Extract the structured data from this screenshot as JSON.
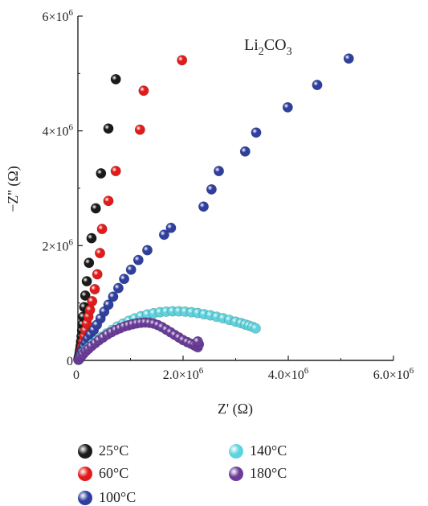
{
  "chart_data": {
    "type": "scatter",
    "title": "",
    "annotation": {
      "text_main": "Li",
      "sub1": "2",
      "text_mid": "CO",
      "sub2": "3"
    },
    "xlabel": "Z' (Ω)",
    "ylabel": "−Z'' (Ω)",
    "xlim": [
      0,
      6000000
    ],
    "ylim": [
      0,
      6000000
    ],
    "x_ticks": [
      {
        "value": 0,
        "label": "0"
      },
      {
        "value": 2000000,
        "label": "2.0×10",
        "exp": "6"
      },
      {
        "value": 4000000,
        "label": "4.0×10",
        "exp": "6"
      },
      {
        "value": 6000000,
        "label": "6.0×10",
        "exp": "6"
      }
    ],
    "y_ticks": [
      {
        "value": 0,
        "label": "0"
      },
      {
        "value": 2000000,
        "label": "2×10",
        "exp": "6"
      },
      {
        "value": 4000000,
        "label": "4×10",
        "exp": "6"
      },
      {
        "value": 6000000,
        "label": "6×10",
        "exp": "6"
      }
    ],
    "grid": false,
    "legend_position": "bottom",
    "series": [
      {
        "name": "25°C",
        "color": "#1a1a1a",
        "points": [
          [
            10000,
            30000
          ],
          [
            20000,
            70000
          ],
          [
            30000,
            120000
          ],
          [
            40000,
            180000
          ],
          [
            50000,
            250000
          ],
          [
            60000,
            330000
          ],
          [
            70000,
            420000
          ],
          [
            80000,
            520000
          ],
          [
            90000,
            630000
          ],
          [
            100000,
            760000
          ],
          [
            120000,
            930000
          ],
          [
            140000,
            1130000
          ],
          [
            170000,
            1380000
          ],
          [
            210000,
            1700000
          ],
          [
            260000,
            2130000
          ],
          [
            340000,
            2650000
          ],
          [
            440000,
            3260000
          ],
          [
            580000,
            4040000
          ],
          [
            720000,
            4900000
          ]
        ]
      },
      {
        "name": "60°C",
        "color": "#e11b1b",
        "points": [
          [
            10000,
            20000
          ],
          [
            20000,
            50000
          ],
          [
            40000,
            100000
          ],
          [
            60000,
            160000
          ],
          [
            80000,
            240000
          ],
          [
            100000,
            330000
          ],
          [
            120000,
            420000
          ],
          [
            140000,
            520000
          ],
          [
            170000,
            640000
          ],
          [
            200000,
            760000
          ],
          [
            230000,
            880000
          ],
          [
            270000,
            1030000
          ],
          [
            320000,
            1240000
          ],
          [
            370000,
            1500000
          ],
          [
            420000,
            1870000
          ],
          [
            460000,
            2290000
          ],
          [
            580000,
            2780000
          ],
          [
            720000,
            3300000
          ],
          [
            1180000,
            4020000
          ],
          [
            1250000,
            4700000
          ],
          [
            1980000,
            5230000
          ]
        ]
      },
      {
        "name": "100°C",
        "color": "#2e3f9e",
        "points": [
          [
            10000,
            20000
          ],
          [
            30000,
            60000
          ],
          [
            50000,
            110000
          ],
          [
            80000,
            170000
          ],
          [
            110000,
            240000
          ],
          [
            150000,
            310000
          ],
          [
            190000,
            380000
          ],
          [
            240000,
            450000
          ],
          [
            300000,
            530000
          ],
          [
            360000,
            620000
          ],
          [
            430000,
            730000
          ],
          [
            500000,
            850000
          ],
          [
            580000,
            970000
          ],
          [
            670000,
            1110000
          ],
          [
            770000,
            1260000
          ],
          [
            880000,
            1420000
          ],
          [
            1010000,
            1580000
          ],
          [
            1150000,
            1750000
          ],
          [
            1320000,
            1920000
          ],
          [
            1640000,
            2190000
          ],
          [
            1770000,
            2310000
          ],
          [
            2390000,
            2680000
          ],
          [
            2540000,
            2980000
          ],
          [
            2680000,
            3300000
          ],
          [
            3180000,
            3640000
          ],
          [
            3390000,
            3970000
          ],
          [
            3990000,
            4410000
          ],
          [
            4550000,
            4800000
          ],
          [
            5150000,
            5260000
          ]
        ]
      },
      {
        "name": "140°C",
        "color": "#5fd3dd",
        "points": [
          [
            10000,
            10000
          ],
          [
            30000,
            40000
          ],
          [
            60000,
            80000
          ],
          [
            100000,
            130000
          ],
          [
            150000,
            180000
          ],
          [
            210000,
            230000
          ],
          [
            280000,
            290000
          ],
          [
            360000,
            350000
          ],
          [
            450000,
            410000
          ],
          [
            550000,
            470000
          ],
          [
            650000,
            530000
          ],
          [
            750000,
            590000
          ],
          [
            860000,
            640000
          ],
          [
            970000,
            690000
          ],
          [
            1080000,
            730000
          ],
          [
            1200000,
            770000
          ],
          [
            1320000,
            800000
          ],
          [
            1440000,
            820000
          ],
          [
            1560000,
            840000
          ],
          [
            1680000,
            850000
          ],
          [
            1800000,
            855000
          ],
          [
            1920000,
            855000
          ],
          [
            2040000,
            850000
          ],
          [
            2160000,
            840000
          ],
          [
            2280000,
            825000
          ],
          [
            2400000,
            805000
          ],
          [
            2520000,
            785000
          ],
          [
            2640000,
            760000
          ],
          [
            2760000,
            735000
          ],
          [
            2880000,
            705000
          ],
          [
            3000000,
            675000
          ],
          [
            3100000,
            650000
          ],
          [
            3180000,
            625000
          ],
          [
            3250000,
            605000
          ],
          [
            3320000,
            585000
          ],
          [
            3380000,
            560000
          ]
        ]
      },
      {
        "name": "180°C",
        "color": "#6a3d9a",
        "points": [
          [
            10000,
            10000
          ],
          [
            30000,
            30000
          ],
          [
            60000,
            70000
          ],
          [
            100000,
            110000
          ],
          [
            150000,
            160000
          ],
          [
            200000,
            200000
          ],
          [
            260000,
            250000
          ],
          [
            330000,
            300000
          ],
          [
            400000,
            350000
          ],
          [
            480000,
            400000
          ],
          [
            560000,
            450000
          ],
          [
            640000,
            490000
          ],
          [
            720000,
            530000
          ],
          [
            800000,
            560000
          ],
          [
            880000,
            590000
          ],
          [
            960000,
            610000
          ],
          [
            1040000,
            630000
          ],
          [
            1120000,
            645000
          ],
          [
            1200000,
            655000
          ],
          [
            1280000,
            660000
          ],
          [
            1360000,
            655000
          ],
          [
            1440000,
            640000
          ],
          [
            1520000,
            615000
          ],
          [
            1600000,
            580000
          ],
          [
            1680000,
            535000
          ],
          [
            1760000,
            490000
          ],
          [
            1840000,
            445000
          ],
          [
            1920000,
            400000
          ],
          [
            2000000,
            355000
          ],
          [
            2080000,
            320000
          ],
          [
            2150000,
            290000
          ],
          [
            2210000,
            265000
          ],
          [
            2250000,
            245000
          ],
          [
            2280000,
            230000
          ],
          [
            2300000,
            280000
          ],
          [
            2280000,
            330000
          ]
        ]
      }
    ]
  }
}
